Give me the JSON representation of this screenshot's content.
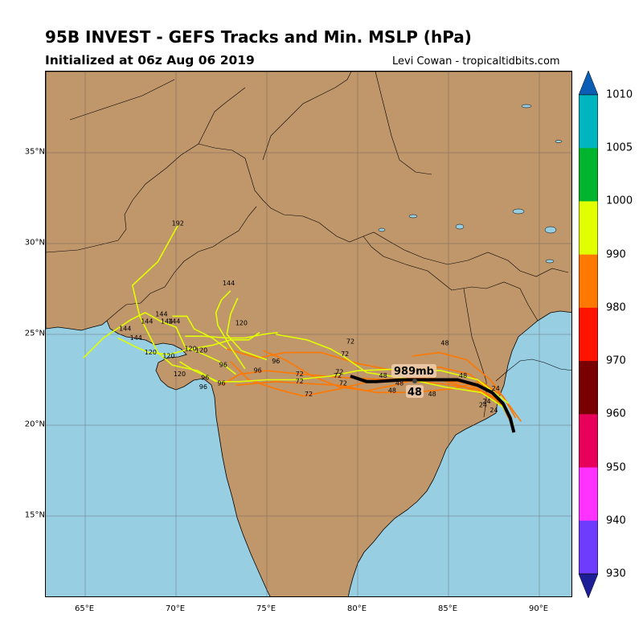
{
  "header": {
    "title": "95B INVEST - GEFS Tracks and Min. MSLP (hPa)",
    "subtitle": "Initialized at 06z Aug 06 2019",
    "credit": "Levi Cowan - tropicaltidbits.com"
  },
  "axes": {
    "x_ticks": [
      {
        "label": "65°E",
        "lon": 65
      },
      {
        "label": "70°E",
        "lon": 70
      },
      {
        "label": "75°E",
        "lon": 75
      },
      {
        "label": "80°E",
        "lon": 80
      },
      {
        "label": "85°E",
        "lon": 85
      },
      {
        "label": "90°E",
        "lon": 90
      }
    ],
    "y_ticks": [
      {
        "label": "35°N",
        "lat": 35
      },
      {
        "label": "30°N",
        "lat": 30
      },
      {
        "label": "25°N",
        "lat": 25
      },
      {
        "label": "20°N",
        "lat": 20
      },
      {
        "label": "15°N",
        "lat": 15
      }
    ],
    "extent": {
      "lon_min": 62.8,
      "lon_max": 91.8,
      "lat_min": 10.5,
      "lat_max": 39.4
    }
  },
  "colorbar": {
    "levels": [
      {
        "label": "1010",
        "value": 1010
      },
      {
        "label": "1005",
        "value": 1005
      },
      {
        "label": "1000",
        "value": 1000
      },
      {
        "label": "990",
        "value": 990
      },
      {
        "label": "980",
        "value": 980
      },
      {
        "label": "970",
        "value": 970
      },
      {
        "label": "960",
        "value": 960
      },
      {
        "label": "950",
        "value": 950
      },
      {
        "label": "940",
        "value": 940
      },
      {
        "label": "930",
        "value": 930
      }
    ],
    "bins": [
      {
        "range": ">1010",
        "color": "#0a5fb4"
      },
      {
        "range": "1005-1010",
        "color": "#00b4c0"
      },
      {
        "range": "1000-1005",
        "color": "#00b42d"
      },
      {
        "range": "990-1000",
        "color": "#e1ff00"
      },
      {
        "range": "980-990",
        "color": "#ff7800"
      },
      {
        "range": "970-980",
        "color": "#ff1400"
      },
      {
        "range": "960-970",
        "color": "#780000"
      },
      {
        "range": "950-960",
        "color": "#e6005a"
      },
      {
        "range": "940-950",
        "color": "#ff32ff"
      },
      {
        "range": "930-940",
        "color": "#6e3cff"
      },
      {
        "range": "<930",
        "color": "#1e1e96"
      }
    ]
  },
  "map": {
    "land_color": "#c0966b",
    "ocean_color": "#97cee2",
    "grid_color": "#555555"
  },
  "mean_track": {
    "label_pressure": "989mb",
    "label_hour": "48",
    "color": "#000000",
    "points": [
      [
        88.6,
        19.6
      ],
      [
        88.4,
        20.4
      ],
      [
        88.0,
        21.2
      ],
      [
        87.4,
        21.8
      ],
      [
        86.6,
        22.2
      ],
      [
        85.5,
        22.5
      ],
      [
        84.0,
        22.5
      ],
      [
        82.5,
        22.5
      ],
      [
        81.0,
        22.4
      ],
      [
        80.5,
        22.4
      ],
      [
        79.6,
        22.7
      ]
    ]
  },
  "annotations": {
    "hour_labels": [
      {
        "text": "192",
        "lon": 70.1,
        "lat": 31.0
      },
      {
        "text": "144",
        "lon": 72.9,
        "lat": 27.7
      },
      {
        "text": "144",
        "lon": 69.2,
        "lat": 26.0
      },
      {
        "text": "144",
        "lon": 68.4,
        "lat": 25.6
      },
      {
        "text": "144",
        "lon": 69.5,
        "lat": 25.6
      },
      {
        "text": "144",
        "lon": 69.9,
        "lat": 25.6
      },
      {
        "text": "144",
        "lon": 67.2,
        "lat": 25.2
      },
      {
        "text": "144",
        "lon": 67.8,
        "lat": 24.7
      },
      {
        "text": "120",
        "lon": 73.6,
        "lat": 25.5
      },
      {
        "text": "120",
        "lon": 70.8,
        "lat": 24.1
      },
      {
        "text": "120",
        "lon": 71.4,
        "lat": 24.0
      },
      {
        "text": "120",
        "lon": 68.6,
        "lat": 23.9
      },
      {
        "text": "120",
        "lon": 69.6,
        "lat": 23.7
      },
      {
        "text": "120",
        "lon": 70.2,
        "lat": 22.7
      },
      {
        "text": "96",
        "lon": 75.5,
        "lat": 23.4
      },
      {
        "text": "96",
        "lon": 72.6,
        "lat": 23.2
      },
      {
        "text": "96",
        "lon": 74.5,
        "lat": 22.9
      },
      {
        "text": "96",
        "lon": 71.6,
        "lat": 22.5
      },
      {
        "text": "96",
        "lon": 71.5,
        "lat": 22.0
      },
      {
        "text": "96",
        "lon": 72.5,
        "lat": 22.2
      },
      {
        "text": "72",
        "lon": 79.6,
        "lat": 24.5
      },
      {
        "text": "72",
        "lon": 79.3,
        "lat": 23.8
      },
      {
        "text": "72",
        "lon": 79.0,
        "lat": 22.8
      },
      {
        "text": "72",
        "lon": 78.9,
        "lat": 22.6
      },
      {
        "text": "72",
        "lon": 76.8,
        "lat": 22.7
      },
      {
        "text": "72",
        "lon": 76.8,
        "lat": 22.3
      },
      {
        "text": "72",
        "lon": 79.2,
        "lat": 22.2
      },
      {
        "text": "72",
        "lon": 77.3,
        "lat": 21.6
      },
      {
        "text": "48",
        "lon": 84.8,
        "lat": 24.4
      },
      {
        "text": "48",
        "lon": 85.8,
        "lat": 22.6
      },
      {
        "text": "48",
        "lon": 81.4,
        "lat": 22.6
      },
      {
        "text": "48",
        "lon": 82.3,
        "lat": 22.2
      },
      {
        "text": "48",
        "lon": 81.9,
        "lat": 21.8
      },
      {
        "text": "48",
        "lon": 84.1,
        "lat": 21.6
      },
      {
        "text": "24",
        "lon": 87.6,
        "lat": 21.9
      },
      {
        "text": "24",
        "lon": 87.1,
        "lat": 21.2
      },
      {
        "text": "24",
        "lon": 87.5,
        "lat": 20.7
      },
      {
        "text": "24",
        "lon": 86.9,
        "lat": 21.0
      }
    ]
  },
  "ensemble_tracks": [
    {
      "color": "#ff7800",
      "points": [
        [
          88.5,
          20.0
        ],
        [
          88.0,
          21.2
        ],
        [
          86.5,
          22.0
        ],
        [
          84.5,
          22.3
        ],
        [
          82.0,
          22.5
        ],
        [
          79.5,
          22.6
        ],
        [
          77.0,
          22.8
        ],
        [
          75.0,
          23.0
        ],
        [
          73.5,
          22.8
        ],
        [
          72.5,
          22.2
        ]
      ]
    },
    {
      "color": "#ff7800",
      "points": [
        [
          88.4,
          20.5
        ],
        [
          87.6,
          21.5
        ],
        [
          86.0,
          22.3
        ],
        [
          83.5,
          22.6
        ],
        [
          81.0,
          22.5
        ],
        [
          79.0,
          22.0
        ],
        [
          77.0,
          21.6
        ],
        [
          75.5,
          22.0
        ],
        [
          74.0,
          22.5
        ],
        [
          73.0,
          23.5
        ]
      ]
    },
    {
      "color": "#ff7800",
      "points": [
        [
          88.6,
          19.8
        ],
        [
          87.8,
          21.4
        ],
        [
          86.2,
          22.8
        ],
        [
          84.5,
          23.2
        ],
        [
          82.0,
          23.0
        ],
        [
          80.0,
          23.4
        ],
        [
          78.0,
          24.0
        ],
        [
          76.0,
          24.0
        ],
        [
          74.5,
          23.7
        ],
        [
          72.8,
          24.2
        ]
      ]
    },
    {
      "color": "#ff7800",
      "points": [
        [
          88.7,
          20.4
        ],
        [
          88.0,
          21.6
        ],
        [
          86.8,
          22.4
        ],
        [
          85.2,
          22.0
        ],
        [
          83.0,
          21.8
        ],
        [
          81.0,
          21.8
        ],
        [
          79.0,
          22.2
        ],
        [
          77.0,
          22.3
        ],
        [
          75.5,
          22.4
        ],
        [
          73.3,
          22.2
        ]
      ]
    },
    {
      "color": "#ff7800",
      "points": [
        [
          89.0,
          20.2
        ],
        [
          88.2,
          21.3
        ],
        [
          87.3,
          22.5
        ],
        [
          86.0,
          23.6
        ],
        [
          84.5,
          24.0
        ],
        [
          83.0,
          23.8
        ]
      ]
    },
    {
      "color": "#ff7800",
      "points": [
        [
          88.2,
          20.8
        ],
        [
          87.5,
          21.5
        ],
        [
          85.6,
          22.2
        ],
        [
          83.8,
          22.7
        ],
        [
          82.0,
          22.2
        ],
        [
          80.5,
          21.9
        ],
        [
          79.0,
          22.1
        ],
        [
          77.5,
          22.7
        ],
        [
          76.0,
          23.6
        ],
        [
          74.8,
          24.1
        ]
      ]
    },
    {
      "color": "#e1ff00",
      "points": [
        [
          88.6,
          20.0
        ],
        [
          88.0,
          21.0
        ],
        [
          86.8,
          21.8
        ],
        [
          84.8,
          22.1
        ],
        [
          82.5,
          22.6
        ],
        [
          80.5,
          22.9
        ],
        [
          79.2,
          23.8
        ],
        [
          78.5,
          24.2
        ],
        [
          77.2,
          24.7
        ],
        [
          75.5,
          25.0
        ]
      ]
    },
    {
      "color": "#e1ff00",
      "points": [
        [
          88.3,
          21.2
        ],
        [
          86.6,
          22.5
        ],
        [
          84.6,
          23.0
        ],
        [
          82.5,
          23.1
        ],
        [
          80.0,
          23.0
        ],
        [
          78.5,
          22.7
        ],
        [
          76.5,
          22.5
        ],
        [
          75.0,
          22.5
        ],
        [
          73.5,
          22.4
        ],
        [
          72.3,
          22.4
        ],
        [
          71.0,
          23.0
        ],
        [
          70.2,
          23.5
        ]
      ]
    },
    {
      "color": "#e1ff00",
      "points": [
        [
          74.6,
          25.1
        ],
        [
          74.0,
          24.7
        ],
        [
          73.0,
          24.7
        ],
        [
          72.0,
          24.4
        ],
        [
          70.8,
          24.2
        ],
        [
          69.6,
          23.9
        ],
        [
          68.5,
          24.0
        ],
        [
          67.8,
          24.3
        ],
        [
          66.8,
          24.8
        ]
      ]
    },
    {
      "color": "#e1ff00",
      "points": [
        [
          73.3,
          22.8
        ],
        [
          72.4,
          23.5
        ],
        [
          71.3,
          24.0
        ],
        [
          70.5,
          24.3
        ],
        [
          70.0,
          25.4
        ],
        [
          69.2,
          25.7
        ],
        [
          68.3,
          26.2
        ]
      ]
    },
    {
      "color": "#e1ff00",
      "points": [
        [
          75.0,
          23.6
        ],
        [
          73.6,
          24.1
        ],
        [
          72.8,
          25.0
        ],
        [
          73.0,
          26.1
        ],
        [
          73.4,
          27.0
        ]
      ]
    },
    {
      "color": "#e1ff00",
      "points": [
        [
          72.8,
          24.2
        ],
        [
          72.0,
          24.8
        ],
        [
          71.0,
          25.3
        ],
        [
          70.6,
          26.0
        ],
        [
          69.8,
          26.0
        ]
      ]
    },
    {
      "color": "#e1ff00",
      "points": [
        [
          72.2,
          22.4
        ],
        [
          71.2,
          23.0
        ],
        [
          69.8,
          23.3
        ],
        [
          69.0,
          24.0
        ],
        [
          68.5,
          25.0
        ],
        [
          68.0,
          26.0
        ],
        [
          67.6,
          27.7
        ],
        [
          69.0,
          29.0
        ],
        [
          70.1,
          31.0
        ]
      ]
    },
    {
      "color": "#e1ff00",
      "points": [
        [
          73.8,
          23.1
        ],
        [
          73.0,
          24.3
        ],
        [
          72.3,
          25.5
        ],
        [
          72.2,
          26.2
        ],
        [
          72.5,
          26.9
        ],
        [
          73.0,
          27.4
        ]
      ]
    },
    {
      "color": "#e1ff00",
      "points": [
        [
          68.3,
          26.2
        ],
        [
          67.5,
          25.8
        ],
        [
          66.0,
          24.8
        ],
        [
          64.9,
          23.7
        ]
      ]
    },
    {
      "color": "#e1ff00",
      "points": [
        [
          75.6,
          25.1
        ],
        [
          74.8,
          25.0
        ],
        [
          73.8,
          24.8
        ],
        [
          72.8,
          24.8
        ],
        [
          71.5,
          24.9
        ],
        [
          70.5,
          24.9
        ]
      ]
    }
  ]
}
